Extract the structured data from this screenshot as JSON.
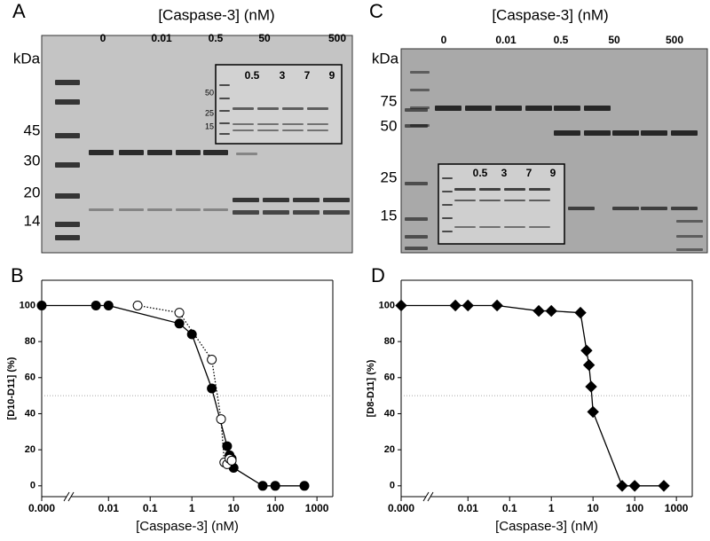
{
  "gels": [
    {
      "panel": "A",
      "title": "[Caspase-3] (nM)",
      "lanes": [
        "0",
        "0.01",
        "0.5",
        "50",
        "500"
      ],
      "unit": "kDa",
      "markers": [
        "45",
        "30",
        "20",
        "14"
      ],
      "inset": {
        "lanes": [
          "0.5",
          "3",
          "7",
          "9"
        ],
        "markers": [
          "50",
          "25",
          "15"
        ]
      }
    },
    {
      "panel": "C",
      "title": "[Caspase-3] (nM)",
      "lanes": [
        "0",
        "0.01",
        "0.5",
        "50",
        "500"
      ],
      "unit": "kDa",
      "markers": [
        "75",
        "50",
        "25",
        "15"
      ],
      "inset": {
        "lanes": [
          "0.5",
          "3",
          "7",
          "9"
        ]
      }
    }
  ],
  "chart_data": [
    {
      "type": "line",
      "panel": "B",
      "x_label": "[Caspase-3] (nM)",
      "y_label": "[D10-D11] (%)",
      "xscale": "log",
      "xlim": [
        0.00025,
        2400
      ],
      "ylim": [
        -6,
        114
      ],
      "xticks": [
        {
          "value": 0,
          "label": "0.000"
        },
        0.01,
        0.1,
        1,
        10,
        100,
        1000
      ],
      "yticks": [
        0,
        20,
        40,
        60,
        80,
        100
      ],
      "reference_line": 50,
      "series": [
        {
          "marker": "filled-circle",
          "line": "solid",
          "color": "#000000",
          "x": [
            0,
            0.005,
            0.01,
            0.5,
            1,
            3,
            7,
            8,
            9,
            10,
            50,
            100,
            500
          ],
          "values": [
            100,
            100,
            100,
            90,
            84,
            54,
            22,
            17,
            15,
            10,
            0,
            0,
            0
          ]
        },
        {
          "marker": "open-circle",
          "line": "dotted",
          "color": "#000000",
          "x": [
            0.05,
            0.5,
            3,
            5,
            6,
            7,
            8,
            9
          ],
          "values": [
            100,
            96,
            70,
            37,
            13,
            12,
            15,
            14
          ]
        }
      ]
    },
    {
      "type": "line",
      "panel": "D",
      "x_label": "[Caspase-3] (nM)",
      "y_label": "[D8-D11] (%)",
      "xscale": "log",
      "xlim": [
        0.00025,
        2400
      ],
      "ylim": [
        -6,
        114
      ],
      "xticks": [
        {
          "value": 0,
          "label": "0.000"
        },
        0.01,
        0.1,
        1,
        10,
        100,
        1000
      ],
      "yticks": [
        0,
        20,
        40,
        60,
        80,
        100
      ],
      "reference_line": 50,
      "series": [
        {
          "marker": "diamond",
          "line": "solid",
          "color": "#000000",
          "x": [
            0,
            0.005,
            0.01,
            0.05,
            0.5,
            1,
            5,
            7,
            8,
            9,
            10,
            50,
            100,
            500
          ],
          "values": [
            100,
            100,
            100,
            100,
            97,
            97,
            96,
            75,
            67,
            55,
            41,
            0,
            0,
            0
          ]
        }
      ]
    }
  ]
}
